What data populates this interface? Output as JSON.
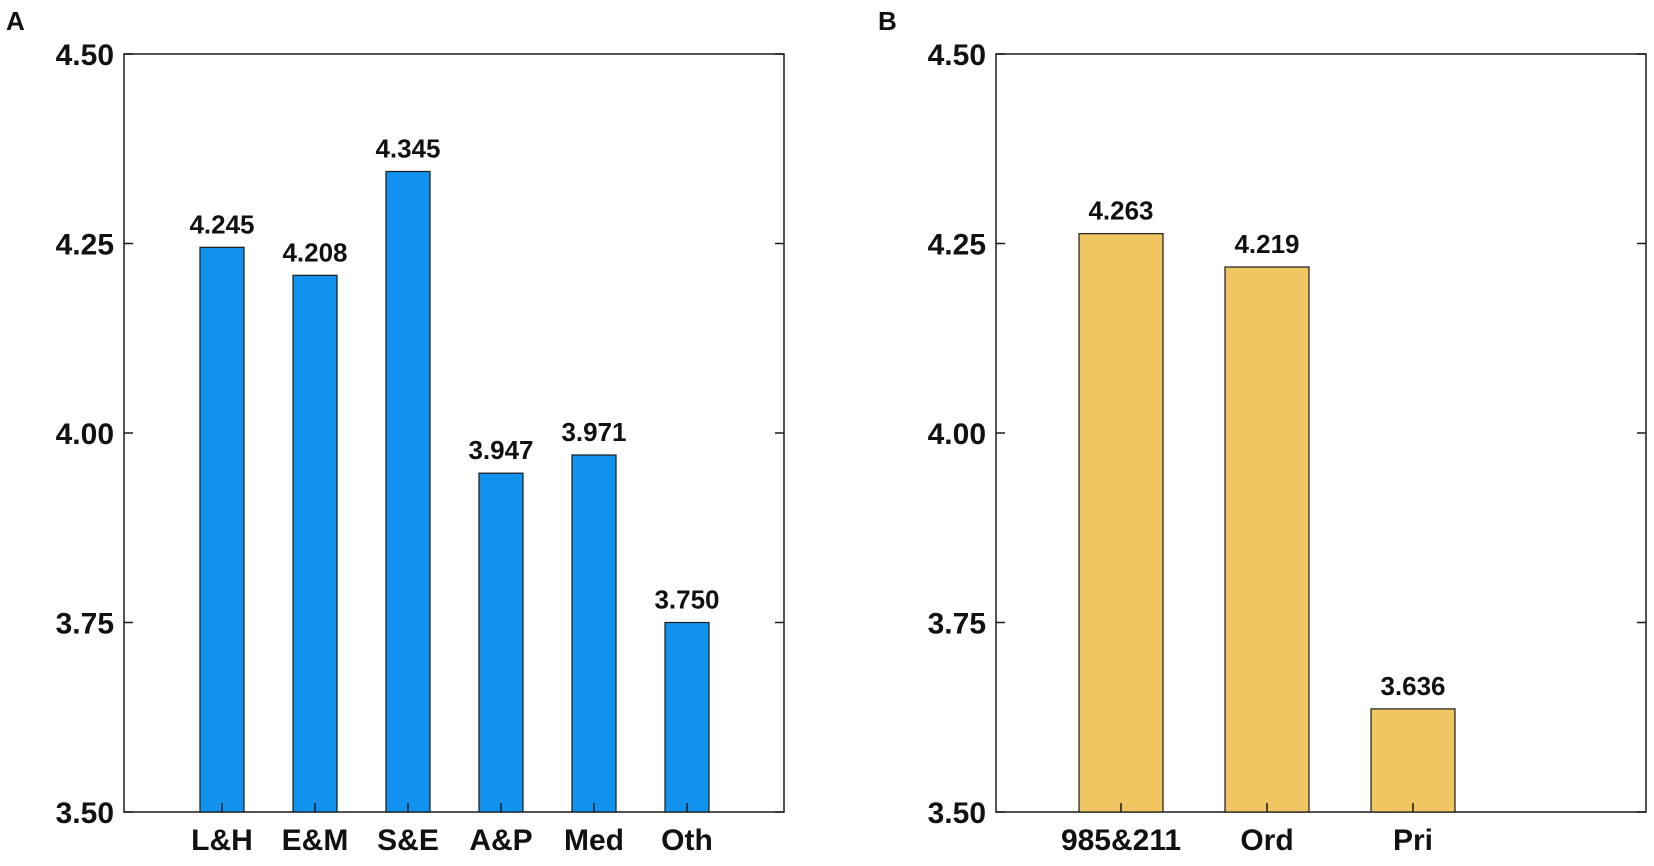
{
  "chart_data": [
    {
      "panel": "A",
      "type": "bar",
      "categories": [
        "L&H",
        "E&M",
        "S&E",
        "A&P",
        "Med",
        "Oth"
      ],
      "values": [
        4.245,
        4.208,
        4.345,
        3.947,
        3.971,
        3.75
      ],
      "value_labels": [
        "4.245",
        "4.208",
        "4.345",
        "3.947",
        "3.971",
        "3.750"
      ],
      "ylim": [
        3.5,
        4.5
      ],
      "yticks": [
        3.5,
        3.75,
        4.0,
        4.25,
        4.5
      ],
      "ytick_labels": [
        "3.50",
        "3.75",
        "4.00",
        "4.25",
        "4.50"
      ],
      "bar_color": "#1192EE",
      "title": "",
      "xlabel": "",
      "ylabel": ""
    },
    {
      "panel": "B",
      "type": "bar",
      "categories": [
        "985&211",
        "Ord",
        "Pri"
      ],
      "values": [
        4.263,
        4.219,
        3.636
      ],
      "value_labels": [
        "4.263",
        "4.219",
        "3.636"
      ],
      "ylim": [
        3.5,
        4.5
      ],
      "yticks": [
        3.5,
        3.75,
        4.0,
        4.25,
        4.5
      ],
      "ytick_labels": [
        "3.50",
        "3.75",
        "4.00",
        "4.25",
        "4.50"
      ],
      "bar_color": "#F0C662",
      "title": "",
      "xlabel": "",
      "ylabel": ""
    }
  ]
}
